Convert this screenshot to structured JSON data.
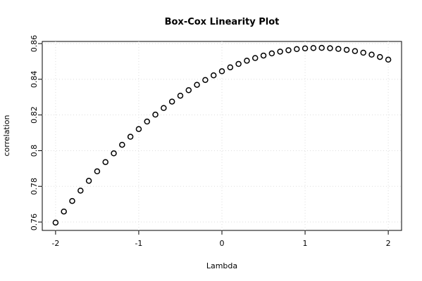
{
  "chart_data": {
    "type": "scatter",
    "title": "Box-Cox Linearity Plot",
    "x_label": "Lambda",
    "y_label": "correlation",
    "x": [
      -2,
      -1.9,
      -1.8,
      -1.7,
      -1.6,
      -1.5,
      -1.4,
      -1.3,
      -1.2,
      -1.1,
      -1,
      -0.9,
      -0.8,
      -0.7,
      -0.6,
      -0.5,
      -0.4,
      -0.3,
      -0.2,
      -0.1,
      0,
      0.1,
      0.2,
      0.3,
      0.4,
      0.5,
      0.6,
      0.7,
      0.8,
      0.9,
      1,
      1.1,
      1.2,
      1.3,
      1.4,
      1.5,
      1.6,
      1.7,
      1.8,
      1.9,
      2
    ],
    "values": [
      0.7597,
      0.7659,
      0.7718,
      0.7776,
      0.7831,
      0.7884,
      0.7936,
      0.7985,
      0.8033,
      0.8078,
      0.8121,
      0.8163,
      0.8202,
      0.8239,
      0.8275,
      0.8308,
      0.8339,
      0.8369,
      0.8396,
      0.8422,
      0.8445,
      0.8467,
      0.8486,
      0.8504,
      0.8519,
      0.8533,
      0.8545,
      0.8555,
      0.8563,
      0.8569,
      0.8573,
      0.8575,
      0.8576,
      0.8574,
      0.857,
      0.8565,
      0.8558,
      0.8549,
      0.8538,
      0.8525,
      0.851
    ],
    "color": "#000000",
    "xlim": [
      -2.16,
      2.16
    ],
    "xticks": [
      -2,
      -1,
      0,
      1,
      2
    ],
    "ylim": [
      0.7553,
      0.8612
    ],
    "yticks": [
      0.76,
      0.78,
      0.8,
      0.82,
      0.84,
      0.86
    ],
    "grid": true
  }
}
